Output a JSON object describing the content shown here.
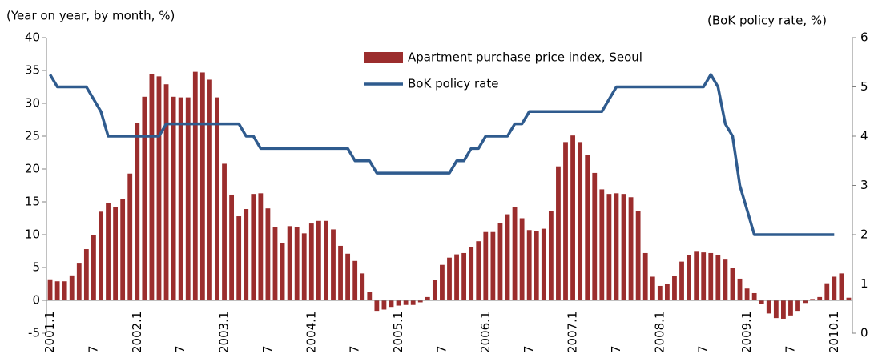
{
  "chart_data": {
    "type": "bar",
    "y_label": "(Year on year, by month, %)",
    "y2_label": "(BoK policy rate, %)",
    "categories": [
      "2001.1",
      null,
      null,
      null,
      null,
      null,
      "7",
      null,
      null,
      null,
      null,
      null,
      "2002.1",
      null,
      null,
      null,
      null,
      null,
      "7",
      null,
      null,
      null,
      null,
      null,
      "2003.1",
      null,
      null,
      null,
      null,
      null,
      "7",
      null,
      null,
      null,
      null,
      null,
      "2004.1",
      null,
      null,
      null,
      null,
      null,
      "7",
      null,
      null,
      null,
      null,
      null,
      "2005.1",
      null,
      null,
      null,
      null,
      null,
      "7",
      null,
      null,
      null,
      null,
      null,
      "2006.1",
      null,
      null,
      null,
      null,
      null,
      "7",
      null,
      null,
      null,
      null,
      null,
      "2007.1",
      null,
      null,
      null,
      null,
      null,
      "7",
      null,
      null,
      null,
      null,
      null,
      "2008.1",
      null,
      null,
      null,
      null,
      null,
      "7",
      null,
      null,
      null,
      null,
      null,
      "2009.1",
      null,
      null,
      null,
      null,
      null,
      "7",
      null,
      null,
      null,
      null,
      null,
      "2010.1",
      null,
      null
    ],
    "series": [
      {
        "name": "Apartment purchase price index, Seoul",
        "type": "bar",
        "color": "#9b2d2d",
        "values": [
          3.2,
          2.9,
          2.9,
          3.8,
          5.6,
          7.8,
          9.9,
          13.5,
          14.8,
          14.2,
          15.4,
          19.3,
          27,
          31,
          34.4,
          34.1,
          32.9,
          31,
          30.9,
          30.9,
          34.8,
          34.7,
          33.6,
          30.9,
          20.8,
          16.1,
          12.8,
          13.9,
          16.2,
          16.3,
          14,
          11.2,
          8.7,
          11.3,
          11.1,
          10.2,
          11.7,
          12.1,
          12.1,
          10.8,
          8.3,
          7.1,
          6,
          4.1,
          1.3,
          -1.6,
          -1.4,
          -1.0,
          -0.8,
          -0.7,
          -0.7,
          -0.3,
          0.5,
          3.1,
          5.4,
          6.5,
          7.0,
          7.2,
          8.1,
          9.0,
          10.4,
          10.4,
          11.8,
          13.1,
          14.2,
          12.5,
          10.7,
          10.5,
          10.9,
          13.6,
          20.4,
          24.1,
          25.1,
          24.1,
          22.1,
          19.4,
          16.9,
          16.2,
          16.3,
          16.2,
          15.7,
          13.6,
          7.2,
          3.6,
          2.2,
          2.5,
          3.7,
          5.9,
          6.9,
          7.4,
          7.3,
          7.2,
          6.9,
          6.2,
          5.0,
          3.3,
          1.8,
          1.1,
          -0.5,
          -2.0,
          -2.7,
          -2.8,
          -2.3,
          -1.6,
          -0.4,
          0.2,
          0.5,
          2.6,
          3.6,
          4.1,
          0.4
        ]
      },
      {
        "name": "BoK policy rate",
        "type": "line",
        "axis": "y2",
        "color": "#2f5b8e",
        "values": [
          5.25,
          5,
          5,
          5,
          5,
          5,
          4.75,
          4.5,
          4,
          4,
          4,
          4,
          4,
          4,
          4,
          4,
          4.25,
          4.25,
          4.25,
          4.25,
          4.25,
          4.25,
          4.25,
          4.25,
          4.25,
          4.25,
          4.25,
          4,
          4,
          3.75,
          3.75,
          3.75,
          3.75,
          3.75,
          3.75,
          3.75,
          3.75,
          3.75,
          3.75,
          3.75,
          3.75,
          3.75,
          3.5,
          3.5,
          3.5,
          3.25,
          3.25,
          3.25,
          3.25,
          3.25,
          3.25,
          3.25,
          3.25,
          3.25,
          3.25,
          3.25,
          3.5,
          3.5,
          3.75,
          3.75,
          4,
          4,
          4,
          4,
          4.25,
          4.25,
          4.5,
          4.5,
          4.5,
          4.5,
          4.5,
          4.5,
          4.5,
          4.5,
          4.5,
          4.5,
          4.5,
          4.75,
          5,
          5,
          5,
          5,
          5,
          5,
          5,
          5,
          5,
          5,
          5,
          5,
          5,
          5.25,
          5,
          4.25,
          4,
          3,
          2.5,
          2,
          2,
          2,
          2,
          2,
          2,
          2,
          2,
          2,
          2,
          2,
          2,
          null,
          null
        ]
      }
    ],
    "ylim": [
      -5,
      40
    ],
    "yticks": [
      -5,
      0,
      5,
      10,
      15,
      20,
      25,
      30,
      35,
      40
    ],
    "y2lim": [
      0,
      6
    ],
    "y2ticks": [
      0,
      1,
      2,
      3,
      4,
      5,
      6
    ],
    "legend": "top"
  }
}
